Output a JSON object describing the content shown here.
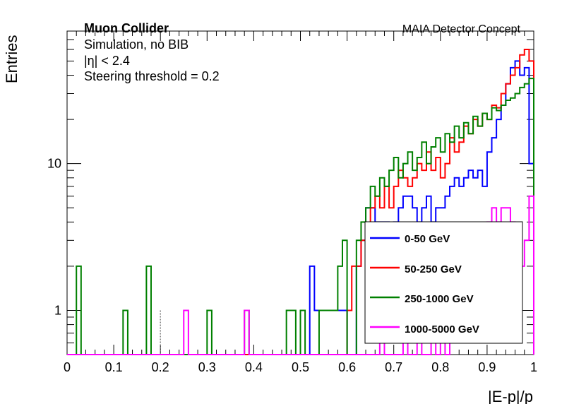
{
  "chart_data": {
    "type": "histogram-step",
    "title": "",
    "xlabel": "|E-p|/p",
    "ylabel": "Entries",
    "xlim": [
      0,
      1
    ],
    "ylim": [
      0.5,
      80
    ],
    "yscale": "log",
    "x_ticks": [
      "0",
      "0.1",
      "0.2",
      "0.3",
      "0.4",
      "0.5",
      "0.6",
      "0.7",
      "0.8",
      "0.9",
      "1"
    ],
    "y_ticks": [
      "1",
      "10"
    ],
    "bins": 100,
    "annotations": {
      "experiment": "Muon Collider",
      "simulation": "Simulation, no BIB",
      "eta_cut": "|η| < 2.4",
      "threshold": "Steering threshold = 0.2",
      "concept": "MAIA Detector Concept"
    },
    "threshold_line_x": 0.2,
    "legend_position": "bottom-right",
    "series": [
      {
        "name": "0-50 GeV",
        "color": "#0000ff",
        "bins": [
          [
            0.52,
            0.53,
            2
          ],
          [
            0.53,
            0.54,
            1
          ],
          [
            0.54,
            0.55,
            1
          ],
          [
            0.55,
            0.56,
            1
          ],
          [
            0.56,
            0.57,
            1
          ],
          [
            0.57,
            0.58,
            1
          ],
          [
            0.58,
            0.59,
            1
          ],
          [
            0.59,
            0.6,
            1
          ],
          [
            0.62,
            0.63,
            2
          ],
          [
            0.63,
            0.64,
            3
          ],
          [
            0.64,
            0.65,
            5
          ],
          [
            0.65,
            0.66,
            5
          ],
          [
            0.66,
            0.67,
            4
          ],
          [
            0.67,
            0.68,
            4
          ],
          [
            0.68,
            0.69,
            4
          ],
          [
            0.69,
            0.7,
            3
          ],
          [
            0.7,
            0.71,
            4
          ],
          [
            0.71,
            0.72,
            5
          ],
          [
            0.72,
            0.73,
            6
          ],
          [
            0.73,
            0.74,
            6
          ],
          [
            0.74,
            0.75,
            5
          ],
          [
            0.75,
            0.76,
            4
          ],
          [
            0.76,
            0.77,
            5
          ],
          [
            0.77,
            0.78,
            6
          ],
          [
            0.78,
            0.79,
            4
          ],
          [
            0.79,
            0.8,
            5
          ],
          [
            0.8,
            0.81,
            5
          ],
          [
            0.81,
            0.82,
            6
          ],
          [
            0.82,
            0.83,
            7
          ],
          [
            0.83,
            0.84,
            8
          ],
          [
            0.84,
            0.85,
            7
          ],
          [
            0.85,
            0.86,
            8
          ],
          [
            0.86,
            0.87,
            9
          ],
          [
            0.87,
            0.88,
            8
          ],
          [
            0.88,
            0.89,
            9
          ],
          [
            0.89,
            0.9,
            7
          ],
          [
            0.9,
            0.91,
            12
          ],
          [
            0.91,
            0.92,
            15
          ],
          [
            0.92,
            0.93,
            20
          ],
          [
            0.93,
            0.94,
            25
          ],
          [
            0.94,
            0.95,
            35
          ],
          [
            0.95,
            0.96,
            45
          ],
          [
            0.96,
            0.97,
            50
          ],
          [
            0.97,
            0.98,
            40
          ],
          [
            0.98,
            0.99,
            45
          ],
          [
            0.99,
            1.0,
            10
          ]
        ]
      },
      {
        "name": "50-250 GeV",
        "color": "#ff0000",
        "bins": [
          [
            0.6,
            0.61,
            1
          ],
          [
            0.61,
            0.62,
            2
          ],
          [
            0.62,
            0.63,
            2
          ],
          [
            0.63,
            0.64,
            3
          ],
          [
            0.64,
            0.65,
            3
          ],
          [
            0.65,
            0.66,
            5
          ],
          [
            0.66,
            0.67,
            6
          ],
          [
            0.67,
            0.68,
            5
          ],
          [
            0.68,
            0.69,
            7
          ],
          [
            0.69,
            0.7,
            5
          ],
          [
            0.7,
            0.71,
            7
          ],
          [
            0.71,
            0.72,
            9
          ],
          [
            0.72,
            0.73,
            8
          ],
          [
            0.73,
            0.74,
            7
          ],
          [
            0.74,
            0.75,
            8
          ],
          [
            0.75,
            0.76,
            10
          ],
          [
            0.76,
            0.77,
            9
          ],
          [
            0.77,
            0.78,
            12
          ],
          [
            0.78,
            0.79,
            9
          ],
          [
            0.79,
            0.8,
            11
          ],
          [
            0.8,
            0.81,
            8
          ],
          [
            0.81,
            0.82,
            10
          ],
          [
            0.82,
            0.83,
            15
          ],
          [
            0.83,
            0.84,
            12
          ],
          [
            0.84,
            0.85,
            14
          ],
          [
            0.85,
            0.86,
            18
          ],
          [
            0.86,
            0.87,
            16
          ],
          [
            0.87,
            0.88,
            20
          ],
          [
            0.88,
            0.89,
            18
          ],
          [
            0.89,
            0.9,
            22
          ],
          [
            0.9,
            0.91,
            20
          ],
          [
            0.91,
            0.92,
            25
          ],
          [
            0.92,
            0.93,
            24
          ],
          [
            0.93,
            0.94,
            30
          ],
          [
            0.94,
            0.95,
            35
          ],
          [
            0.95,
            0.96,
            40
          ],
          [
            0.96,
            0.97,
            45
          ],
          [
            0.97,
            0.98,
            55
          ],
          [
            0.98,
            0.99,
            60
          ],
          [
            0.99,
            1.0,
            50
          ]
        ]
      },
      {
        "name": "250-1000 GeV",
        "color": "#008000",
        "bins": [
          [
            0.02,
            0.03,
            2
          ],
          [
            0.12,
            0.13,
            1
          ],
          [
            0.17,
            0.18,
            2
          ],
          [
            0.3,
            0.31,
            1
          ],
          [
            0.38,
            0.39,
            1
          ],
          [
            0.47,
            0.48,
            1
          ],
          [
            0.48,
            0.49,
            1
          ],
          [
            0.5,
            0.51,
            1
          ],
          [
            0.54,
            0.55,
            1
          ],
          [
            0.55,
            0.56,
            1
          ],
          [
            0.56,
            0.57,
            1
          ],
          [
            0.57,
            0.58,
            1
          ],
          [
            0.58,
            0.59,
            2
          ],
          [
            0.59,
            0.6,
            3
          ],
          [
            0.62,
            0.63,
            3
          ],
          [
            0.63,
            0.64,
            4
          ],
          [
            0.64,
            0.65,
            5
          ],
          [
            0.65,
            0.66,
            7
          ],
          [
            0.66,
            0.67,
            6
          ],
          [
            0.67,
            0.68,
            8
          ],
          [
            0.68,
            0.69,
            7
          ],
          [
            0.69,
            0.7,
            9
          ],
          [
            0.7,
            0.71,
            11
          ],
          [
            0.71,
            0.72,
            8
          ],
          [
            0.72,
            0.73,
            10
          ],
          [
            0.73,
            0.74,
            12
          ],
          [
            0.74,
            0.75,
            9
          ],
          [
            0.75,
            0.76,
            11
          ],
          [
            0.76,
            0.77,
            14
          ],
          [
            0.77,
            0.78,
            10
          ],
          [
            0.78,
            0.79,
            13
          ],
          [
            0.79,
            0.8,
            15
          ],
          [
            0.8,
            0.81,
            12
          ],
          [
            0.81,
            0.82,
            16
          ],
          [
            0.82,
            0.83,
            14
          ],
          [
            0.83,
            0.84,
            18
          ],
          [
            0.84,
            0.85,
            15
          ],
          [
            0.85,
            0.86,
            19
          ],
          [
            0.86,
            0.87,
            16
          ],
          [
            0.87,
            0.88,
            21
          ],
          [
            0.88,
            0.89,
            18
          ],
          [
            0.89,
            0.9,
            22
          ],
          [
            0.9,
            0.91,
            20
          ],
          [
            0.91,
            0.92,
            24
          ],
          [
            0.92,
            0.93,
            23
          ],
          [
            0.93,
            0.94,
            25
          ],
          [
            0.94,
            0.95,
            27
          ],
          [
            0.95,
            0.96,
            28
          ],
          [
            0.96,
            0.97,
            30
          ],
          [
            0.97,
            0.98,
            33
          ],
          [
            0.98,
            0.99,
            35
          ],
          [
            0.99,
            1.0,
            38
          ]
        ]
      },
      {
        "name": "1000-5000 GeV",
        "color": "#ff00ff",
        "bins": [
          [
            0.25,
            0.26,
            1
          ],
          [
            0.38,
            0.39,
            1
          ],
          [
            0.67,
            0.68,
            1
          ],
          [
            0.72,
            0.73,
            1
          ],
          [
            0.75,
            0.76,
            1
          ],
          [
            0.78,
            0.79,
            1
          ],
          [
            0.8,
            0.81,
            1
          ],
          [
            0.82,
            0.83,
            2
          ],
          [
            0.83,
            0.84,
            2
          ],
          [
            0.84,
            0.85,
            2
          ],
          [
            0.85,
            0.86,
            2
          ],
          [
            0.86,
            0.87,
            3
          ],
          [
            0.87,
            0.88,
            2
          ],
          [
            0.88,
            0.89,
            3
          ],
          [
            0.89,
            0.9,
            3
          ],
          [
            0.9,
            0.91,
            4
          ],
          [
            0.91,
            0.92,
            5
          ],
          [
            0.92,
            0.93,
            4
          ],
          [
            0.93,
            0.94,
            5
          ],
          [
            0.94,
            0.95,
            5
          ],
          [
            0.95,
            0.96,
            4
          ],
          [
            0.96,
            0.97,
            3
          ],
          [
            0.97,
            0.98,
            2
          ],
          [
            0.98,
            0.99,
            3
          ],
          [
            0.99,
            1.0,
            6
          ]
        ]
      }
    ]
  }
}
